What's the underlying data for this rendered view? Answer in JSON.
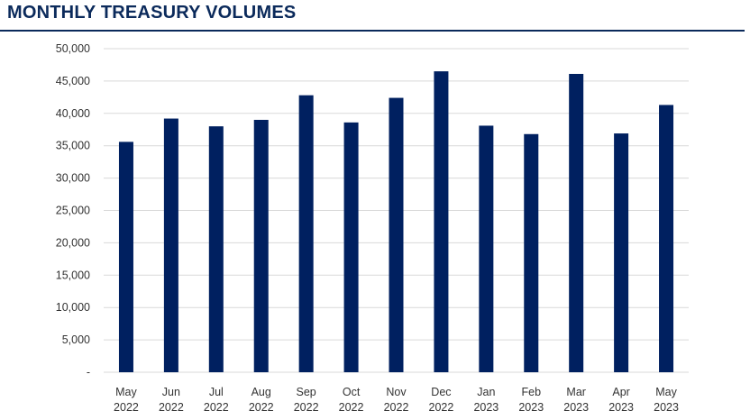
{
  "title": "MONTHLY TREASURY VOLUMES",
  "colors": {
    "bar": "#002060",
    "grid": "#d9d9d9",
    "title": "#0b2a5b"
  },
  "chart_data": {
    "type": "bar",
    "title": "MONTHLY TREASURY VOLUMES",
    "categories": [
      [
        "May",
        "2022"
      ],
      [
        "Jun",
        "2022"
      ],
      [
        "Jul",
        "2022"
      ],
      [
        "Aug",
        "2022"
      ],
      [
        "Sep",
        "2022"
      ],
      [
        "Oct",
        "2022"
      ],
      [
        "Nov",
        "2022"
      ],
      [
        "Dec",
        "2022"
      ],
      [
        "Jan",
        "2023"
      ],
      [
        "Feb",
        "2023"
      ],
      [
        "Mar",
        "2023"
      ],
      [
        "Apr",
        "2023"
      ],
      [
        "May",
        "2023"
      ]
    ],
    "values": [
      35600,
      39200,
      38000,
      39000,
      42800,
      38600,
      42400,
      46500,
      38100,
      36800,
      46100,
      36900,
      41300
    ],
    "ylim": [
      0,
      50000
    ],
    "yticks": [
      {
        "value": 0,
        "label": "-"
      },
      {
        "value": 5000,
        "label": "5,000"
      },
      {
        "value": 10000,
        "label": "10,000"
      },
      {
        "value": 15000,
        "label": "15,000"
      },
      {
        "value": 20000,
        "label": "20,000"
      },
      {
        "value": 25000,
        "label": "25,000"
      },
      {
        "value": 30000,
        "label": "30,000"
      },
      {
        "value": 35000,
        "label": "35,000"
      },
      {
        "value": 40000,
        "label": "40,000"
      },
      {
        "value": 45000,
        "label": "45,000"
      },
      {
        "value": 50000,
        "label": "50,000"
      }
    ],
    "grid": true,
    "legend": "none"
  }
}
